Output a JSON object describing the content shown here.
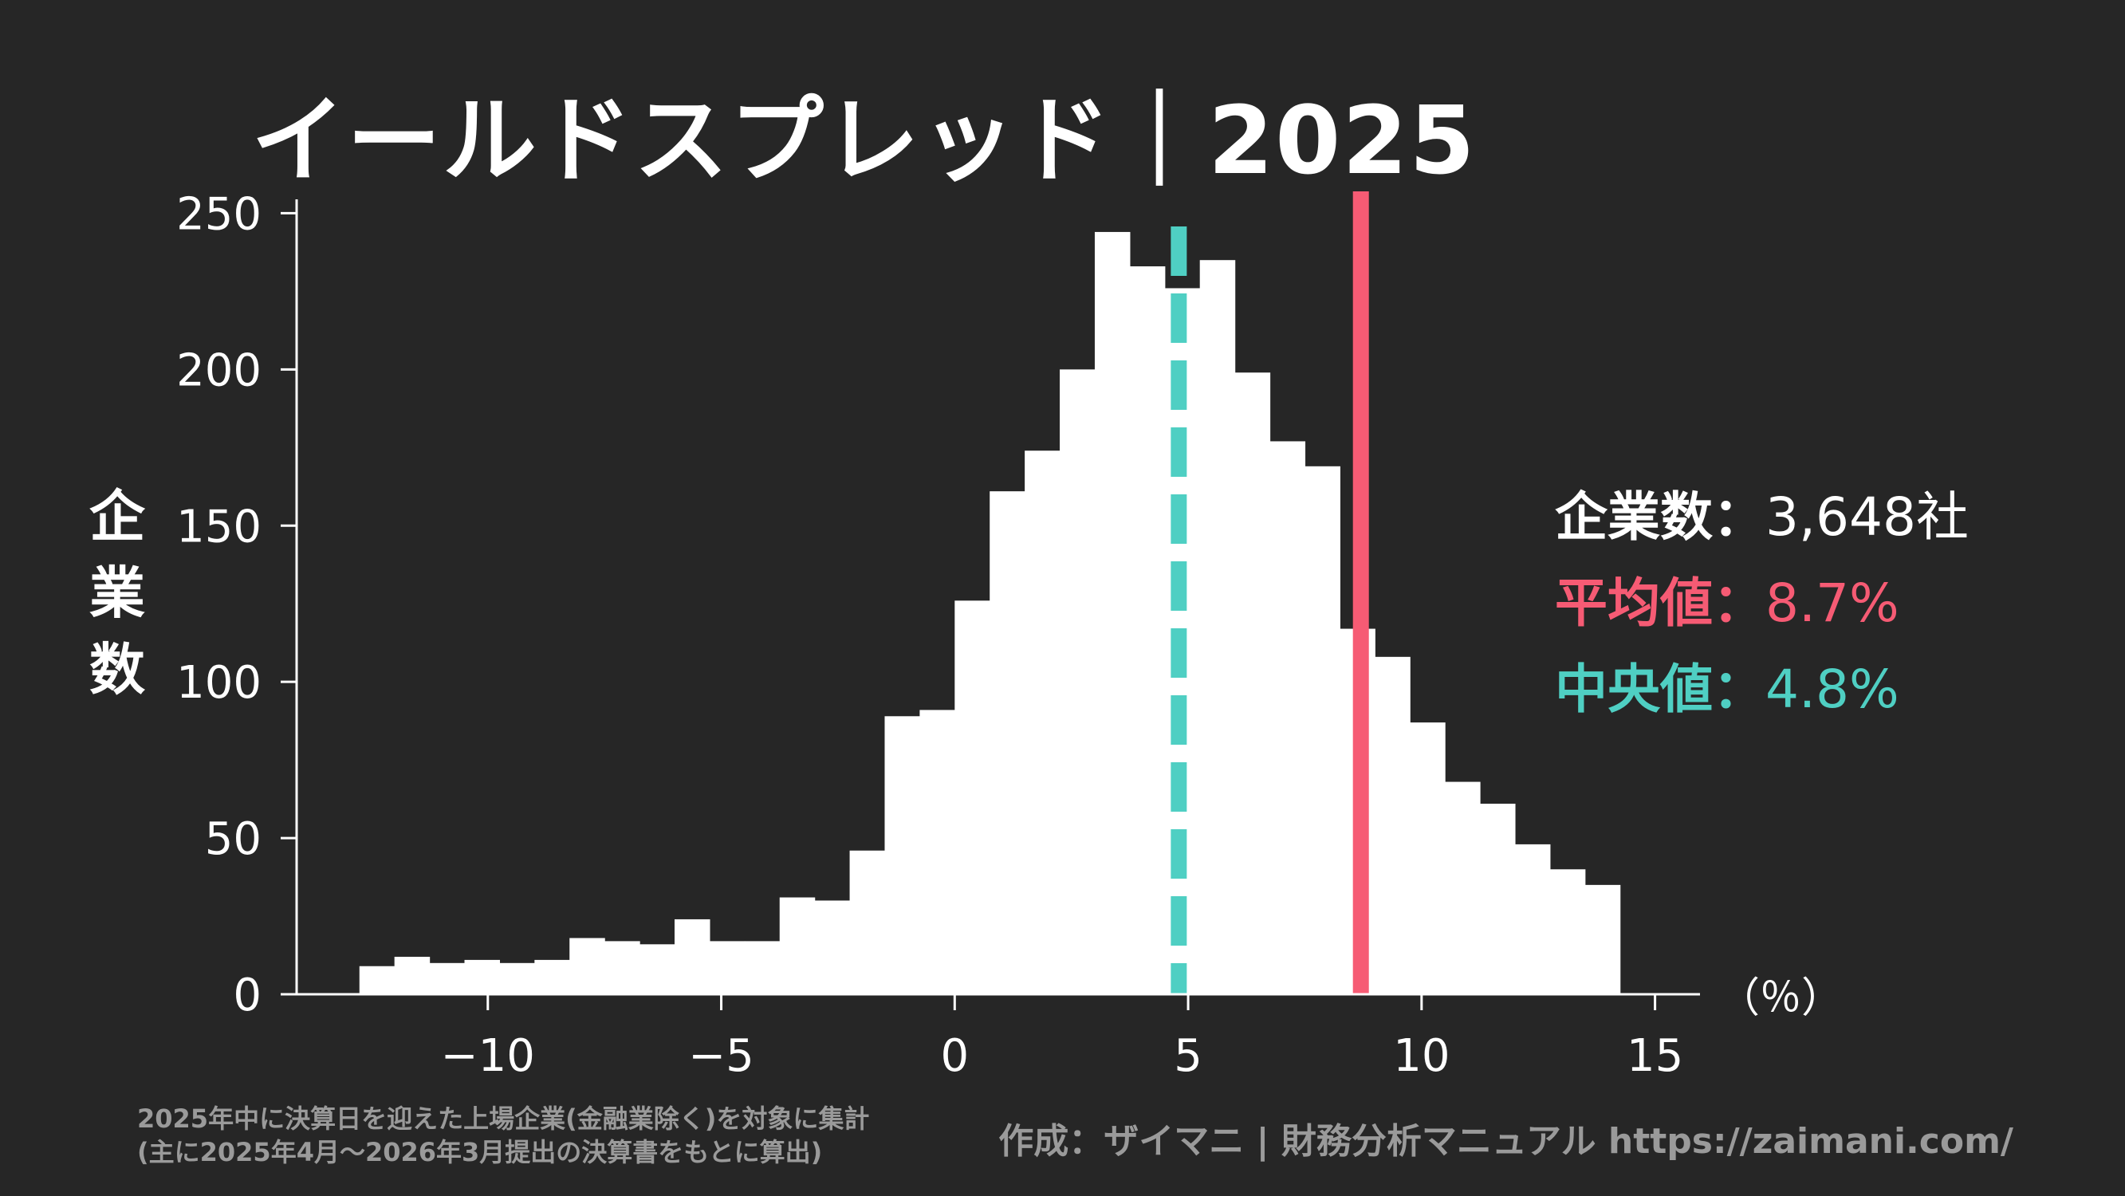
{
  "title": "イールドスプレッド｜2025",
  "ylabel_chars": [
    "企",
    "業",
    "数"
  ],
  "stats": {
    "count_label": "企業数：",
    "count_value": "3,648社",
    "mean_label": "平均値：",
    "mean_value": "8.7%",
    "median_label": "中央値：",
    "median_value": "4.8%"
  },
  "note_line1": "2025年中に決算日を迎えた上場企業(金融業除く)を対象に集計",
  "note_line2": "(主に2025年4月～2026年3月提出の決算書をもとに算出)",
  "credit": "作成：ザイマニ | 財務分析マニュアル https://zaimani.com/",
  "colors": {
    "background": "#262626",
    "bars": "#ffffff",
    "mean": "#f65b74",
    "median": "#4fcfc3",
    "muted": "#9a9a9a"
  },
  "chart_data": {
    "type": "bar",
    "title": "イールドスプレッド｜2025",
    "xlabel": "（％）",
    "ylabel": "企業数",
    "bin_width": 0.75,
    "bin_edges_start": -12.75,
    "counts": [
      9,
      12,
      10,
      11,
      10,
      11,
      18,
      17,
      16,
      24,
      17,
      17,
      31,
      30,
      46,
      89,
      91,
      126,
      161,
      174,
      200,
      244,
      233,
      226,
      235,
      199,
      177,
      169,
      117,
      108,
      87,
      68,
      61,
      48,
      40,
      35
    ],
    "xlim": [
      -14.3,
      16.1
    ],
    "ylim": [
      0,
      257
    ],
    "xticks": [
      -10,
      -5,
      0,
      5,
      10,
      15
    ],
    "xtick_labels": [
      "−10",
      "−5",
      "0",
      "5",
      "10",
      "15"
    ],
    "yticks": [
      0,
      50,
      100,
      150,
      200,
      250
    ],
    "ytick_labels": [
      "0",
      "50",
      "100",
      "150",
      "200",
      "250"
    ],
    "mean": 8.7,
    "median": 4.8
  }
}
